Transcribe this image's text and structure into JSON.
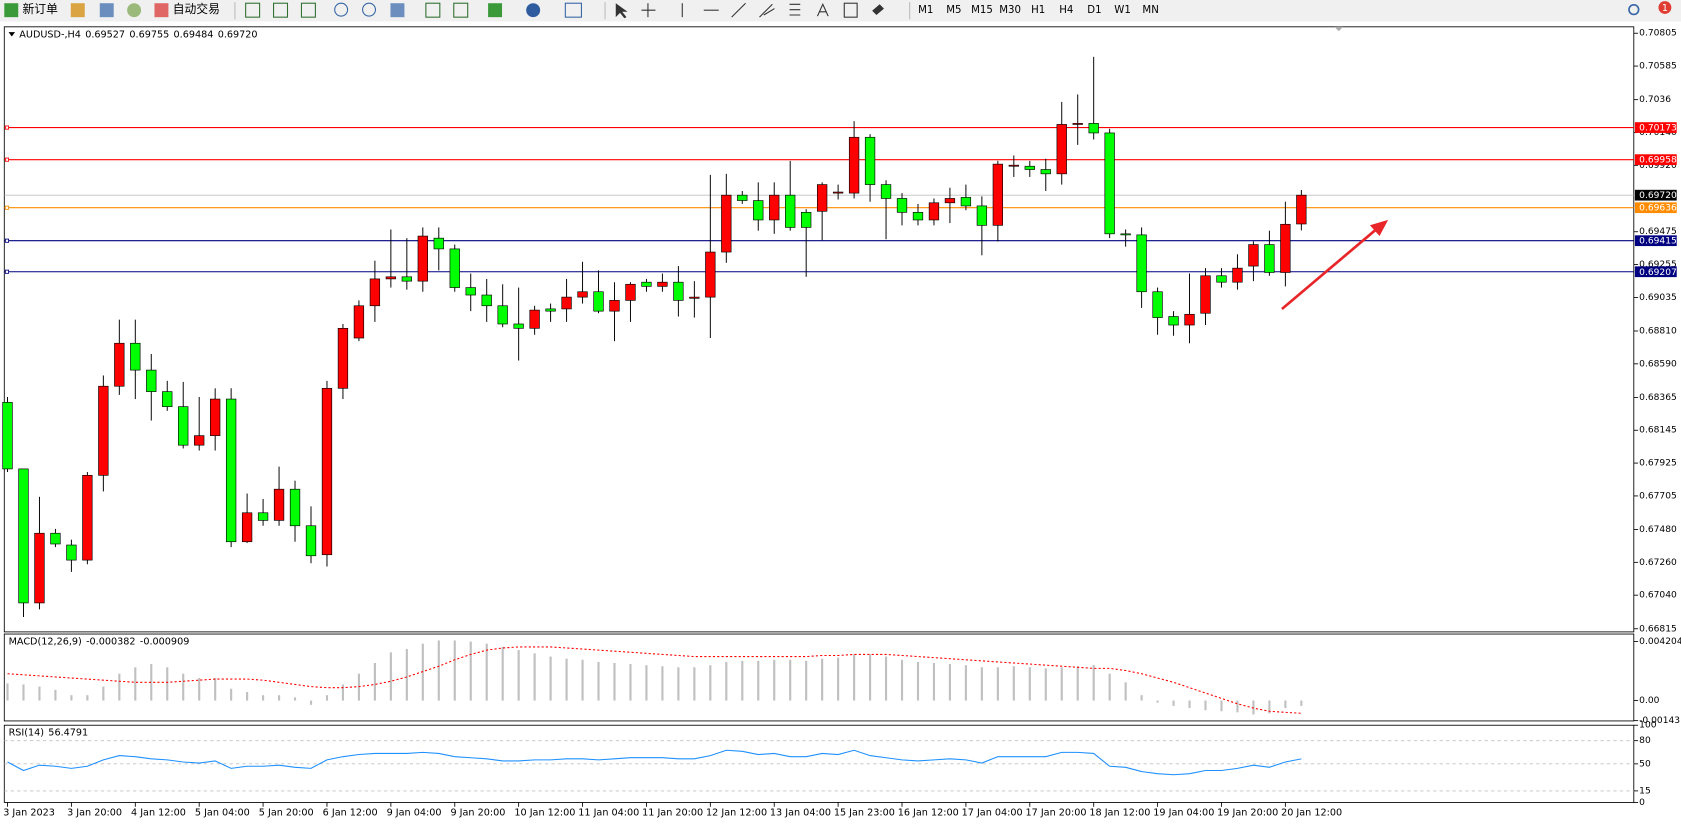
{
  "toolbar": {
    "new_order": "新订单",
    "auto_trading": "自动交易",
    "timeframes": [
      "M1",
      "M5",
      "M15",
      "M30",
      "H1",
      "H4",
      "D1",
      "W1",
      "MN"
    ],
    "notifications": "1"
  },
  "chart_data": [
    {
      "type": "candlestick",
      "title": "AUDUSD-,H4",
      "open": [
        0.68332,
        0.67886,
        0.66988,
        0.67455,
        0.67376,
        0.67275,
        0.67843,
        0.6844,
        0.68728,
        0.68548,
        0.68404,
        0.68303,
        0.68045,
        0.68109,
        0.68354,
        0.67398,
        0.67592,
        0.67541,
        0.6775,
        0.67505,
        0.67311,
        0.68426,
        0.68763,
        0.68979,
        0.69159,
        0.69173,
        0.69144,
        0.69432,
        0.6936,
        0.69101,
        0.69051,
        0.68979,
        0.68857,
        0.68828,
        0.68958,
        0.68958,
        0.69037,
        0.69073,
        0.68943,
        0.69015,
        0.69137,
        0.69109,
        0.69137,
        0.69029,
        0.69037,
        0.69339,
        0.6972,
        0.69684,
        0.69554,
        0.6972,
        0.69605,
        0.69612,
        0.69734,
        0.69734,
        0.70108,
        0.69791,
        0.69698,
        0.69605,
        0.69554,
        0.69669,
        0.69705,
        0.69648,
        0.69518,
        0.69914,
        0.69914,
        0.69892,
        0.69863,
        0.70194,
        0.70201,
        0.70137,
        0.69461,
        0.69454,
        0.69073,
        0.68907,
        0.6885,
        0.68929,
        0.6918,
        0.69137,
        0.69245,
        0.69389,
        0.69202,
        0.69527
      ],
      "high": [
        0.68368,
        0.67886,
        0.67699,
        0.67484,
        0.67412,
        0.67865,
        0.68512,
        0.68886,
        0.68886,
        0.68656,
        0.68476,
        0.68469,
        0.68368,
        0.68426,
        0.68426,
        0.67721,
        0.67685,
        0.67901,
        0.67807,
        0.67635,
        0.68476,
        0.68857,
        0.69015,
        0.69281,
        0.6949,
        0.69432,
        0.69504,
        0.69504,
        0.69389,
        0.69195,
        0.69159,
        0.69123,
        0.69101,
        0.68979,
        0.68994,
        0.69159,
        0.69274,
        0.69216,
        0.69137,
        0.69137,
        0.69159,
        0.69195,
        0.69245,
        0.69144,
        0.69856,
        0.69863,
        0.69748,
        0.69806,
        0.69806,
        0.6995,
        0.69626,
        0.69806,
        0.69791,
        0.70216,
        0.70129,
        0.6982,
        0.69734,
        0.69662,
        0.69698,
        0.6977,
        0.69791,
        0.69712,
        0.6995,
        0.69986,
        0.6995,
        0.69964,
        0.70345,
        0.70395,
        0.70647,
        0.70165,
        0.6949,
        0.69504,
        0.69101,
        0.68943,
        0.69195,
        0.69231,
        0.69231,
        0.69324,
        0.6941,
        0.69482,
        0.69676,
        0.69755
      ],
      "low": [
        0.67865,
        0.66894,
        0.66945,
        0.67362,
        0.67196,
        0.67247,
        0.67735,
        0.68382,
        0.68354,
        0.6821,
        0.68275,
        0.68023,
        0.68009,
        0.68009,
        0.67362,
        0.6739,
        0.67505,
        0.67505,
        0.67398,
        0.67254,
        0.67232,
        0.68354,
        0.68742,
        0.68871,
        0.69101,
        0.69087,
        0.69073,
        0.69216,
        0.69073,
        0.68943,
        0.68871,
        0.68835,
        0.68612,
        0.68785,
        0.68871,
        0.68871,
        0.68994,
        0.68929,
        0.68742,
        0.68871,
        0.69073,
        0.69073,
        0.68907,
        0.689,
        0.68763,
        0.69267,
        0.69662,
        0.69482,
        0.69461,
        0.69482,
        0.69173,
        0.69418,
        0.69691,
        0.69698,
        0.69676,
        0.69425,
        0.69518,
        0.69518,
        0.69518,
        0.69533,
        0.69619,
        0.69317,
        0.6941,
        0.69842,
        0.69842,
        0.69748,
        0.69791,
        0.70057,
        0.70093,
        0.69432,
        0.69375,
        0.68965,
        0.68785,
        0.68778,
        0.68728,
        0.6885,
        0.69101,
        0.69087,
        0.69144,
        0.6918,
        0.69109,
        0.69484
      ],
      "close": [
        0.67886,
        0.66988,
        0.67455,
        0.67383,
        0.67275,
        0.67843,
        0.6844,
        0.68728,
        0.68548,
        0.68404,
        0.68303,
        0.68045,
        0.68109,
        0.68354,
        0.67398,
        0.67592,
        0.67541,
        0.6775,
        0.67505,
        0.67304,
        0.68426,
        0.68828,
        0.68979,
        0.69159,
        0.69173,
        0.69144,
        0.69446,
        0.6936,
        0.69101,
        0.69051,
        0.68979,
        0.68857,
        0.68828,
        0.6895,
        0.68943,
        0.69037,
        0.69073,
        0.68943,
        0.69015,
        0.69123,
        0.69109,
        0.69137,
        0.69015,
        0.69037,
        0.69339,
        0.6972,
        0.69684,
        0.69554,
        0.6972,
        0.69504,
        0.69504,
        0.69791,
        0.69741,
        0.70108,
        0.69791,
        0.69698,
        0.69605,
        0.69554,
        0.69669,
        0.69698,
        0.69648,
        0.69518,
        0.69928,
        0.69921,
        0.69892,
        0.69863,
        0.70194,
        0.70201,
        0.70137,
        0.69461,
        0.69454,
        0.69073,
        0.689,
        0.6885,
        0.68922,
        0.6918,
        0.69137,
        0.69231,
        0.69389,
        0.69202,
        0.69525,
        0.6972
      ],
      "up_color": "#ff0000",
      "down_color": "#00ff00",
      "ylim": [
        0.66794,
        0.70848
      ],
      "yticks": [
        0.70805,
        0.70585,
        0.7036,
        {
          "value": 0.7014,
          "label": "0.70140"
        },
        {
          "value": 0.6992,
          "label": "0.69920"
        },
        0.69475,
        0.69255,
        0.69035,
        {
          "value": 0.6881,
          "label": "0.68810"
        },
        {
          "value": 0.6859,
          "label": "0.68590"
        },
        0.68365,
        0.68145,
        0.67925,
        0.67705,
        {
          "value": 0.6748,
          "label": "0.67480"
        },
        {
          "value": 0.6726,
          "label": "0.67260"
        },
        {
          "value": 0.6704,
          "label": "0.67040"
        },
        0.66815
      ],
      "xticks": [
        {
          "value": 0,
          "label": "3 Jan 2023"
        },
        {
          "value": 4,
          "label": "3 Jan 20:00"
        },
        {
          "value": 8,
          "label": "4 Jan 12:00"
        },
        {
          "value": 12,
          "label": "5 Jan 04:00"
        },
        {
          "value": 16,
          "label": "5 Jan 20:00"
        },
        {
          "value": 20,
          "label": "6 Jan 12:00"
        },
        {
          "value": 24,
          "label": "9 Jan 04:00"
        },
        {
          "value": 28,
          "label": "9 Jan 20:00"
        },
        {
          "value": 32,
          "label": "10 Jan 12:00"
        },
        {
          "value": 36,
          "label": "11 Jan 04:00"
        },
        {
          "value": 40,
          "label": "11 Jan 20:00"
        },
        {
          "value": 44,
          "label": "12 Jan 12:00"
        },
        {
          "value": 48,
          "label": "13 Jan 04:00"
        },
        {
          "value": 52,
          "label": "15 Jan 23:00"
        },
        {
          "value": 56,
          "label": "16 Jan 12:00"
        },
        {
          "value": 60,
          "label": "17 Jan 04:00"
        },
        {
          "value": 64,
          "label": "17 Jan 20:00"
        },
        {
          "value": 68,
          "label": "18 Jan 12:00"
        },
        {
          "value": 72,
          "label": "19 Jan 04:00"
        },
        {
          "value": 76,
          "label": "19 Jan 20:00"
        },
        {
          "value": 80,
          "label": "20 Jan 12:00"
        }
      ],
      "levels": [
        {
          "value": 0.70173,
          "color": "#ff0000"
        },
        {
          "value": 0.69958,
          "color": "#ff0000"
        },
        {
          "value": 0.69636,
          "color": "#ff8c00"
        },
        {
          "value": 0.69415,
          "color": "#000080"
        },
        {
          "value": 0.69207,
          "color": "#000080"
        }
      ],
      "current_price": {
        "value": 0.6972,
        "label": "0.69720",
        "color": "#000000"
      }
    },
    {
      "type": "macd",
      "title": "MACD(12,26,9)",
      "histogram": [
        0.001222,
        0.001146,
        0.000993,
        0.000764,
        0.000382,
        0.000382,
        0.000993,
        0.00191,
        0.002368,
        0.002598,
        0.002368,
        0.00191,
        0.001604,
        0.001604,
        0.00084,
        0.000611,
        0.000382,
        0.000382,
        0.000229,
        -0.000306,
        0.000382,
        0.001146,
        0.00191,
        0.002674,
        0.003438,
        0.003667,
        0.004049,
        0.004278,
        0.004278,
        0.004202,
        0.004049,
        0.00382,
        0.003591,
        0.003362,
        0.003132,
        0.00298,
        0.002903,
        0.00275,
        0.002674,
        0.002598,
        0.002521,
        0.002445,
        0.002368,
        0.002368,
        0.002521,
        0.00275,
        0.002827,
        0.002827,
        0.002903,
        0.002903,
        0.002827,
        0.00298,
        0.003056,
        0.003285,
        0.003285,
        0.003132,
        0.002903,
        0.00275,
        0.002674,
        0.002598,
        0.002521,
        0.002368,
        0.002368,
        0.002445,
        0.002368,
        0.002292,
        0.002368,
        0.002445,
        0.002521,
        0.00191,
        0.001299,
        0.000382,
        -0.000153,
        -0.000382,
        -0.000535,
        -0.000688,
        -0.000764,
        -0.00084,
        -0.000993,
        -0.000917,
        -0.000535,
        -0.000382
      ],
      "signal": [
        0.00191,
        0.001834,
        0.001757,
        0.001681,
        0.001604,
        0.001528,
        0.001452,
        0.001375,
        0.001299,
        0.001299,
        0.001299,
        0.001375,
        0.001452,
        0.001528,
        0.001528,
        0.001528,
        0.001452,
        0.001299,
        0.001146,
        0.000993,
        0.000917,
        0.000917,
        0.000993,
        0.001146,
        0.001375,
        0.001681,
        0.002063,
        0.002445,
        0.002903,
        0.003285,
        0.003591,
        0.003744,
        0.00382,
        0.00382,
        0.00382,
        0.003744,
        0.003667,
        0.003591,
        0.003514,
        0.003438,
        0.003362,
        0.003285,
        0.003209,
        0.003132,
        0.003132,
        0.003132,
        0.003132,
        0.003132,
        0.003132,
        0.003132,
        0.003132,
        0.003209,
        0.003209,
        0.003285,
        0.003285,
        0.003285,
        0.003209,
        0.003132,
        0.003056,
        0.00298,
        0.002903,
        0.002827,
        0.00275,
        0.002674,
        0.002598,
        0.002521,
        0.002445,
        0.002368,
        0.002292,
        0.002292,
        0.002139,
        0.00191,
        0.001604,
        0.001299,
        0.000917,
        0.000535,
        0.000153,
        -0.000229,
        -0.000535,
        -0.000764,
        -0.00084,
        -0.000909
      ],
      "histogram_color": "#c0c0c0",
      "signal_color": "#ff0000",
      "ylim": [
        -0.001452,
        0.004737
      ],
      "yticks": [
        0.004204,
        {
          "value": 0,
          "label": "0.00"
        },
        -0.001431
      ]
    },
    {
      "type": "line",
      "title": "RSI(14)",
      "values": [
        52.41,
        41.38,
        48.28,
        46.9,
        44.14,
        46.9,
        55.17,
        60.69,
        59.31,
        56.55,
        55.17,
        52.41,
        51.03,
        53.79,
        44.14,
        46.9,
        46.9,
        48.28,
        45.52,
        44.14,
        55.17,
        59.31,
        62.07,
        63.45,
        63.45,
        63.45,
        64.83,
        63.45,
        59.31,
        57.93,
        56.55,
        53.79,
        53.79,
        55.17,
        55.17,
        56.55,
        56.55,
        55.17,
        56.55,
        57.93,
        57.93,
        57.93,
        56.55,
        56.55,
        60.69,
        67.59,
        66.21,
        62.07,
        63.45,
        59.31,
        59.31,
        63.45,
        62.07,
        67.59,
        60.69,
        57.93,
        55.17,
        53.79,
        55.17,
        56.55,
        55.17,
        51.03,
        59.31,
        59.31,
        59.31,
        59.31,
        64.83,
        64.83,
        63.45,
        46.9,
        45.52,
        40,
        37.24,
        35.86,
        37.24,
        41.38,
        41.38,
        44.14,
        48.28,
        45.52,
        52.41,
        56.4791
      ],
      "color": "#1e90ff",
      "grid": "dashed",
      "ylim": [
        0,
        100
      ],
      "yticks": [
        100,
        80,
        50,
        15,
        0
      ]
    }
  ]
}
